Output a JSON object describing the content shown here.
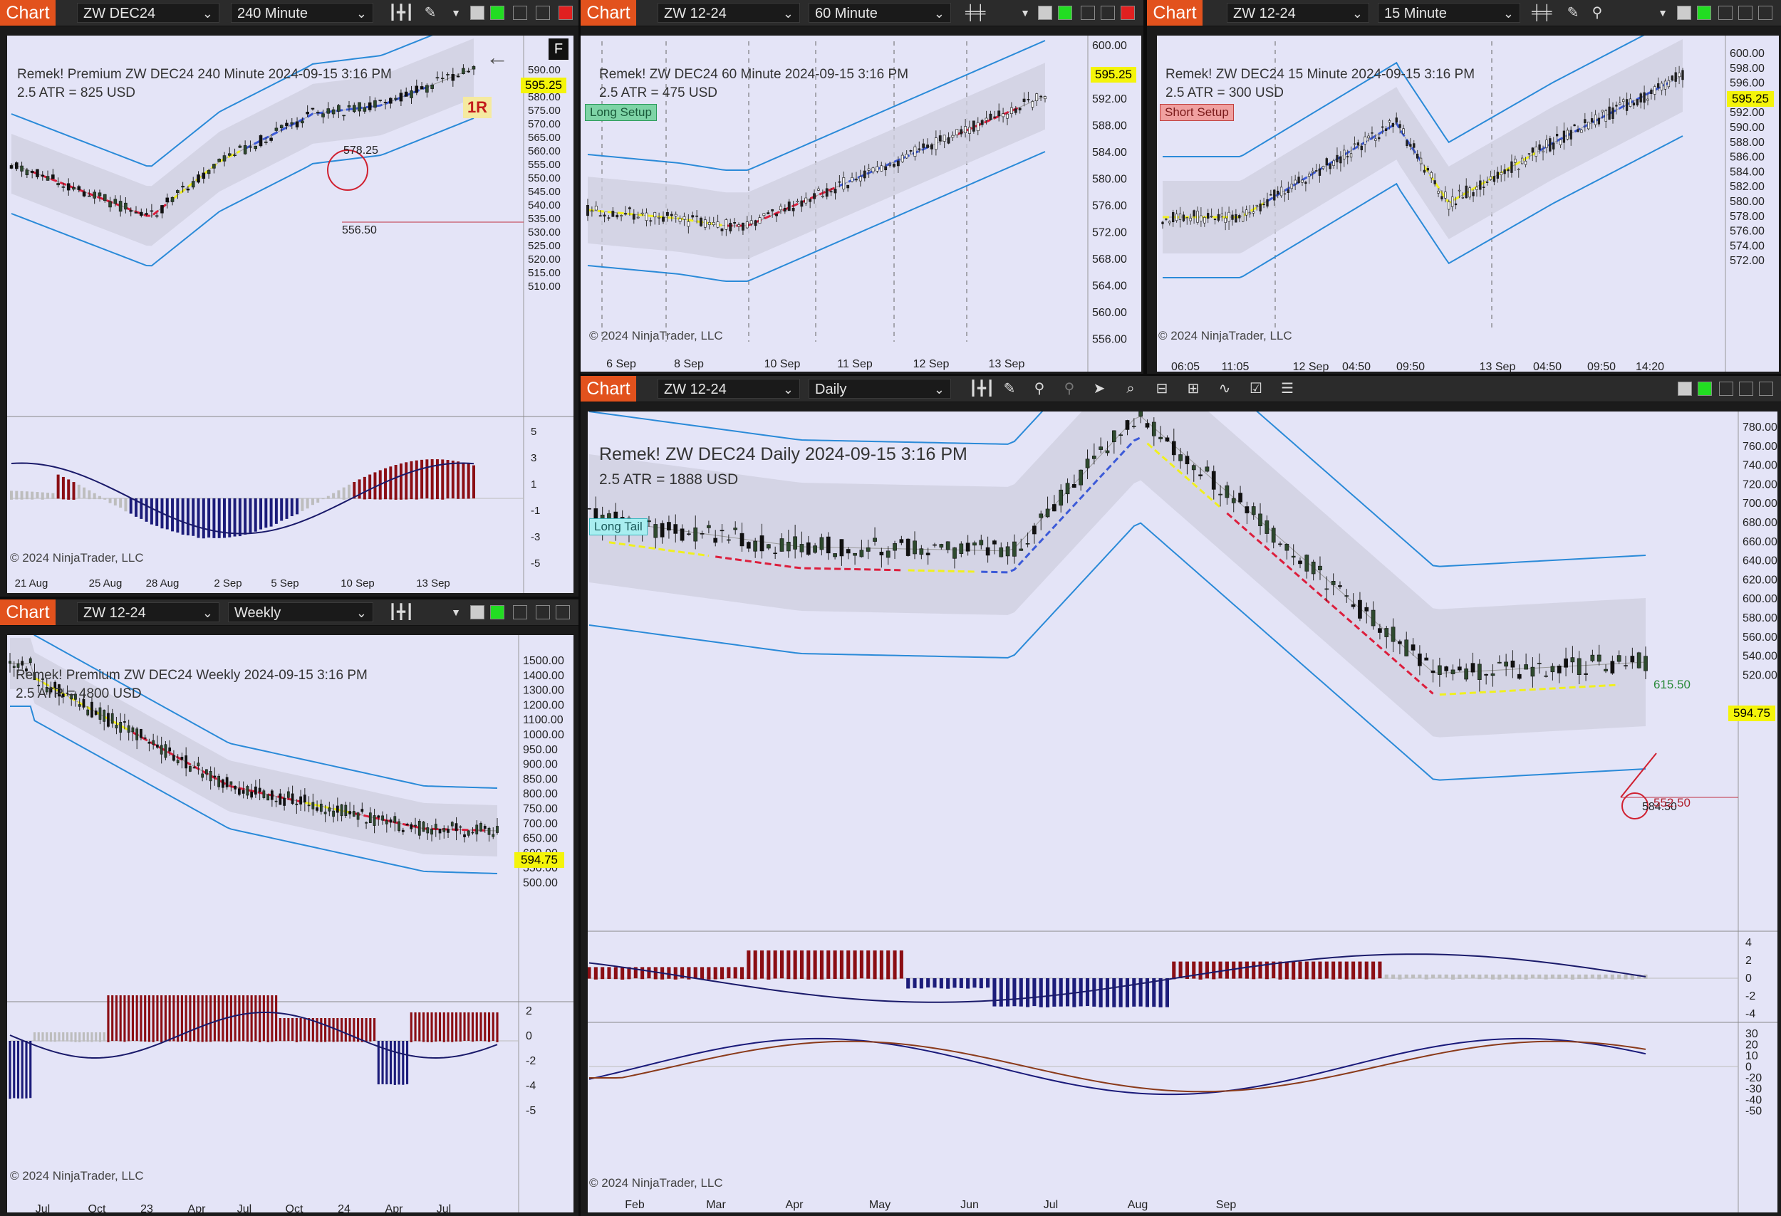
{
  "colors": {
    "tab": "#e2521d",
    "pane_bg": "#e4e4f7",
    "band": "#cfcfdf",
    "upper_band": "#2a8ad8",
    "bull": "#1a3a1a",
    "bear": "#1a1a1a",
    "red_dash": "#dc1e3c",
    "blue_dash": "#3c5ad8",
    "yellow_dash": "#f0f01e",
    "macd_pos": "#1c1c7a",
    "macd_neg": "#8b0e14",
    "macd_gray": "#bdbdbd",
    "price_tag": "#f4f40a"
  },
  "common": {
    "chart_tab": "Chart",
    "copyright": "© 2024 NinjaTrader, LLC"
  },
  "w240": {
    "instrument": "ZW DEC24",
    "period": "240 Minute",
    "title": "Remek!  Premium  ZW DEC24  240 Minute  2024-09-15 3:16 PM",
    "atr": "2.5 ATR = 825 USD",
    "price_tag": "595.25",
    "r_label": "1R",
    "f_label": "F",
    "price_label_1": "578.25",
    "price_label_2": "556.50",
    "y_ticks": [
      "590.00",
      "585.00",
      "580.00",
      "575.00",
      "570.00",
      "565.00",
      "560.00",
      "555.00",
      "550.00",
      "545.00",
      "540.00",
      "535.00",
      "530.00",
      "525.00",
      "520.00",
      "515.00",
      "510.00"
    ],
    "osc_ticks": [
      "5",
      "3",
      "1",
      "-1",
      "-3",
      "-5"
    ],
    "x_ticks": [
      "21 Aug",
      "25 Aug",
      "28 Aug",
      "2 Sep",
      "5 Sep",
      "10 Sep",
      "13 Sep"
    ]
  },
  "w60": {
    "instrument": "ZW 12-24",
    "period": "60 Minute",
    "title": "Remek!  ZW DEC24  60 Minute  2024-09-15 3:16 PM",
    "atr": "2.5 ATR = 475 USD",
    "setup": "Long Setup",
    "price_tag": "595.25",
    "y_ticks": [
      "600.00",
      "596.00",
      "592.00",
      "588.00",
      "584.00",
      "580.00",
      "576.00",
      "572.00",
      "568.00",
      "564.00",
      "560.00",
      "556.00"
    ],
    "x_ticks": [
      "6 Sep",
      "8 Sep",
      "10 Sep",
      "11 Sep",
      "12 Sep",
      "13 Sep"
    ]
  },
  "w15": {
    "instrument": "ZW 12-24",
    "period": "15 Minute",
    "title": "Remek!  ZW DEC24  15 Minute  2024-09-15 3:16 PM",
    "atr": "2.5 ATR = 300 USD",
    "setup": "Short Setup",
    "price_tag": "595.25",
    "y_ticks": [
      "600.00",
      "598.00",
      "596.00",
      "594.00",
      "592.00",
      "590.00",
      "588.00",
      "586.00",
      "584.00",
      "582.00",
      "580.00",
      "578.00",
      "576.00",
      "574.00",
      "572.00"
    ],
    "x_ticks": [
      "06:05",
      "11:05",
      "12 Sep",
      "04:50",
      "09:50",
      "13 Sep",
      "04:50",
      "09:50",
      "14:20"
    ]
  },
  "wW": {
    "instrument": "ZW 12-24",
    "period": "Weekly",
    "title": "Remek!  Premium  ZW DEC24  Weekly  2024-09-15 3:16 PM",
    "atr": "2.5 ATR = 4800 USD",
    "price_tag": "594.75",
    "y_ticks": [
      "1500.00",
      "1400.00",
      "1300.00",
      "1200.00",
      "1100.00",
      "1000.00",
      "950.00",
      "900.00",
      "850.00",
      "800.00",
      "750.00",
      "700.00",
      "650.00",
      "600.00",
      "550.00",
      "500.00"
    ],
    "osc_ticks": [
      "2",
      "0",
      "-2",
      "-4",
      "-5"
    ],
    "x_ticks": [
      "Jul",
      "Oct",
      "23",
      "Apr",
      "Jul",
      "Oct",
      "24",
      "Apr",
      "Jul"
    ]
  },
  "wD": {
    "instrument": "ZW 12-24",
    "period": "Daily",
    "title": "Remek!  ZW DEC24  Daily  2024-09-15 3:16 PM",
    "atr": "2.5 ATR = 1888 USD",
    "setup": "Long Tail",
    "price_tag": "594.75",
    "price_label_1": "615.50",
    "price_label_2": "552.50",
    "price_label_3": "584.50",
    "y_ticks": [
      "780.00",
      "760.00",
      "740.00",
      "720.00",
      "700.00",
      "680.00",
      "660.00",
      "640.00",
      "620.00",
      "600.00",
      "580.00",
      "560.00",
      "540.00",
      "520.00"
    ],
    "osc_ticks": [
      "4",
      "2",
      "0",
      "-2",
      "-4"
    ],
    "osc2_ticks": [
      "30",
      "20",
      "10",
      "0",
      "-20",
      "-30",
      "-40",
      "-50"
    ],
    "x_ticks": [
      "Feb",
      "Mar",
      "Apr",
      "May",
      "Jun",
      "Jul",
      "Aug",
      "Sep"
    ]
  }
}
